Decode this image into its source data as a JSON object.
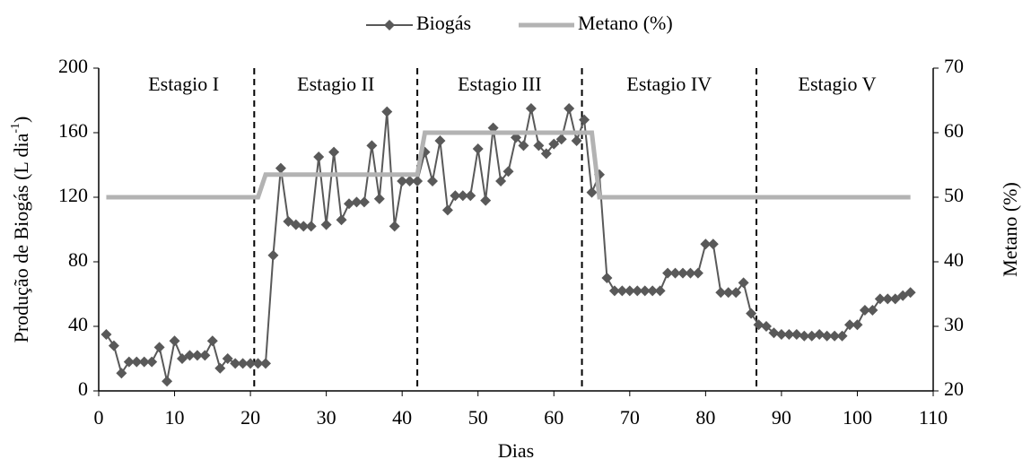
{
  "chart_data": {
    "type": "line",
    "xlabel": "Dias",
    "ylabel": "Produção de Biogás (L dia",
    "ylabel_sup": "-1",
    "ylabel_end": ")",
    "y2label": "Metano (%)",
    "xlim": [
      0,
      110
    ],
    "xticks": [
      0,
      10,
      20,
      30,
      40,
      50,
      60,
      70,
      80,
      90,
      100,
      110
    ],
    "ylim": [
      0,
      200
    ],
    "yticks": [
      0,
      40,
      80,
      120,
      160,
      200
    ],
    "y2lim": [
      20,
      70
    ],
    "y2ticks": [
      20,
      30,
      40,
      50,
      60,
      70
    ],
    "legend": "top",
    "stage_boundaries": [
      20.5,
      42,
      63.7,
      86.7
    ],
    "stages": [
      "Estagio I",
      "Estagio II",
      "Estagio III",
      "Estagio IV",
      "Estagio V"
    ],
    "series": [
      {
        "name": "Biogás",
        "color": "#595959",
        "marker": "diamond",
        "x": [
          1,
          2,
          3,
          4,
          5,
          6,
          7,
          8,
          9,
          10,
          11,
          12,
          13,
          14,
          15,
          16,
          17,
          18,
          19,
          20,
          21,
          22,
          23,
          24,
          25,
          26,
          27,
          28,
          29,
          30,
          31,
          32,
          33,
          34,
          35,
          36,
          37,
          38,
          39,
          40,
          41,
          42,
          43,
          44,
          45,
          46,
          47,
          48,
          49,
          50,
          51,
          52,
          53,
          54,
          55,
          56,
          57,
          58,
          59,
          60,
          61,
          62,
          63,
          64,
          65,
          66,
          67,
          68,
          69,
          70,
          71,
          72,
          73,
          74,
          75,
          76,
          77,
          78,
          79,
          80,
          81,
          82,
          83,
          84,
          85,
          86,
          87,
          88,
          89,
          90,
          91,
          92,
          93,
          94,
          95,
          96,
          97,
          98,
          99,
          100,
          101,
          102,
          103,
          104,
          105,
          106,
          107
        ],
        "values": [
          35,
          28,
          11,
          18,
          18,
          18,
          18,
          27,
          6,
          31,
          20,
          22,
          22,
          22,
          31,
          14,
          20,
          17,
          17,
          17,
          17,
          17,
          84,
          138,
          105,
          103,
          102,
          102,
          145,
          103,
          148,
          106,
          116,
          117,
          117,
          152,
          119,
          173,
          102,
          130,
          130,
          130,
          148,
          130,
          155,
          112,
          121,
          121,
          121,
          150,
          118,
          163,
          130,
          136,
          157,
          152,
          175,
          152,
          147,
          153,
          156,
          175,
          155,
          168,
          123,
          134,
          70,
          62,
          62,
          62,
          62,
          62,
          62,
          62,
          73,
          73,
          73,
          73,
          73,
          91,
          91,
          61,
          61,
          61,
          67,
          48,
          41,
          40,
          36,
          35,
          35,
          35,
          34,
          34,
          35,
          34,
          34,
          34,
          41,
          41,
          50,
          50,
          57,
          57,
          57,
          59,
          61
        ]
      },
      {
        "name": "Metano (%)",
        "color": "#b3b3b3",
        "axis": "y2",
        "x": [
          1,
          21,
          22,
          42,
          43,
          65,
          66,
          107
        ],
        "values": [
          50,
          50,
          53.5,
          53.5,
          60,
          60,
          50,
          50
        ]
      }
    ]
  }
}
